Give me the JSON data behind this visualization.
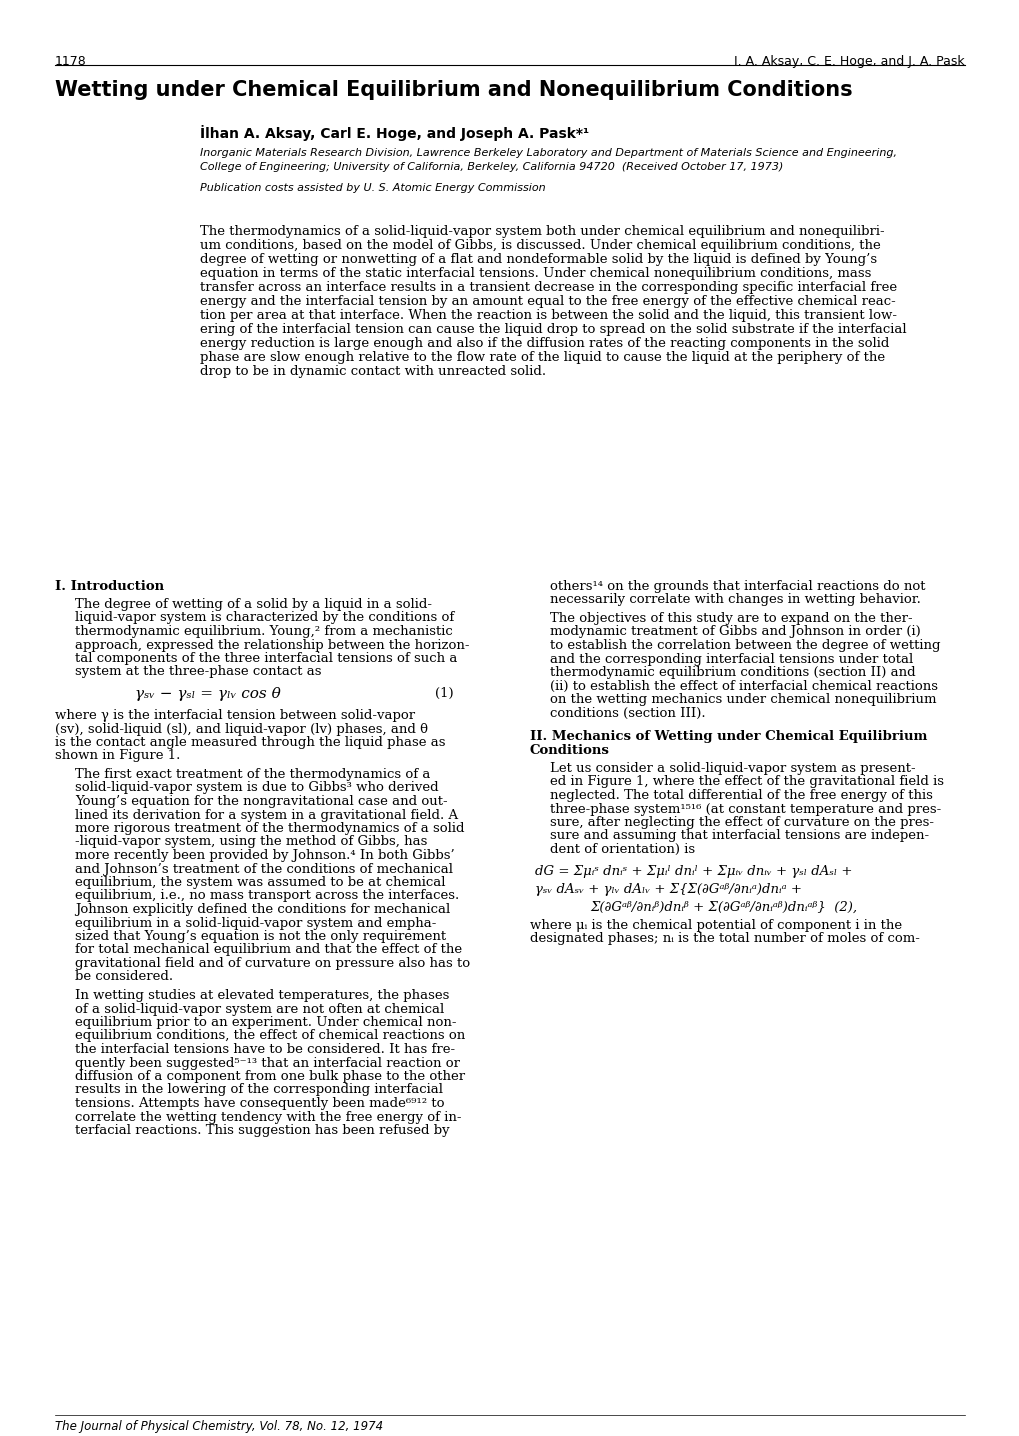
{
  "page_num": "1178",
  "header_right": "I. A. Aksay, C. E. Hoge, and J. A. Pask",
  "title": "Wetting under Chemical Equilibrium and Nonequilibrium Conditions",
  "authors": "İlhan A. Aksay, Carl E. Hoge, and Joseph A. Pask*¹",
  "affiliation1": "Inorganic Materials Research Division, Lawrence Berkeley Laboratory and Department of Materials Science and Engineering,",
  "affiliation2": "College of Engineering; University of California, Berkeley, California 94720  (Received October 17, 1973)",
  "publication": "Publication costs assisted by U. S. Atomic Energy Commission",
  "abstract": "The thermodynamics of a solid-liquid-vapor system both under chemical equilibrium and nonequilibri-\num conditions, based on the model of Gibbs, is discussed. Under chemical equilibrium conditions, the\ndegree of wetting or nonwetting of a flat and nondeformable solid by the liquid is defined by Young’s\nequation in terms of the static interfacial tensions. Under chemical nonequilibrium conditions, mass\ntransfer across an interface results in a transient decrease in the corresponding specific interfacial free\nenergy and the interfacial tension by an amount equal to the free energy of the effective chemical reac-\ntion per area at that interface. When the reaction is between the solid and the liquid, this transient low-\nering of the interfacial tension can cause the liquid drop to spread on the solid substrate if the interfacial\nenergy reduction is large enough and also if the diffusion rates of the reacting components in the solid\nphase are slow enough relative to the flow rate of the liquid to cause the liquid at the periphery of the\ndrop to be in dynamic contact with unreacted solid.",
  "section1_title": "I. Introduction",
  "section1_col1_para1": "The degree of wetting of a solid by a liquid in a solid-liquid-vapor system is characterized by the conditions of thermodynamic equilibrium. Young,² from a mechanistic approach, expressed the relationship between the horizontal components of the three interfacial tensions of such a system at the three-phase contact as",
  "equation1": "γₙᵥ − γₛₗ = γₗᵥ cos θ",
  "equation1_num": "(1)",
  "section1_col1_eq_note": "where γ is the interfacial tension between solid-vapor (sv), solid-liquid (sl), and liquid-vapor (lv) phases, and θ is the contact angle measured through the liquid phase as shown in Figure 1.",
  "section1_col1_para2": "The first exact treatment of the thermodynamics of a solid-liquid-vapor system is due to Gibbs³ who derived Young’s equation for the nongravitational case and outlined its derivation for a system in a gravitational field. A more rigorous treatment of the thermodynamics of a solid-liquid-vapor system, using the method of Gibbs, has more recently been provided by Johnson.⁴ In both Gibbs’ and Johnson’s treatment of the conditions of mechanical equilibrium, the system was assumed to be at chemical equilibrium, i.e., no mass transport across the interfaces. Johnson explicitly defined the conditions for mechanical equilibrium in a solid-liquid-vapor system and emphasized that Young’s equation is not the only requirement for total mechanical equilibrium and that the effect of the gravitational field and of curvature on pressure also has to be considered.",
  "section1_col1_para3": "In wetting studies at elevated temperatures, the phases of a solid-liquid-vapor system are not often at chemical equilibrium prior to an experiment. Under chemical nonequilibrium conditions, the effect of chemical reactions on the interfacial tensions have to be considered. It has frequently been suggested⁵⁻¹³ that an interfacial reaction or diffusion of a component from one bulk phase to the other results in the lowering of the corresponding interfacial tensions. Attempts have consequently been made⁶⁹¹² to correlate the wetting tendency with the free energy of interfacial reactions. This suggestion has been refused by",
  "section1_col2_para1": "others¹⁴ on the grounds that interfacial reactions do not necessarily correlate with changes in wetting behavior.",
  "section1_col2_para2": "The objectives of this study are to expand on the thermodynamic treatment of Gibbs and Johnson in order (i) to establish the correlation between the degree of wetting and the corresponding interfacial tensions under total thermodynamic equilibrium conditions (section II) and (ii) to establish the effect of interfacial chemical reactions on the wetting mechanics under chemical nonequilibrium conditions (section III).",
  "section2_title": "II. Mechanics of Wetting under Chemical Equilibrium Conditions",
  "section2_col2_para1": "Let us consider a solid-liquid-vapor system as presented in Figure 1, where the effect of the gravitational field is neglected. The total differential of the free energy of this three-phase system¹⁵¹⁶ (at constant temperature and pressure, after neglecting the effect of curvature on the pressure and assuming that interfacial tensions are independent of orientation) is",
  "footer": "The Journal of Physical Chemistry, Vol. 78, No. 12, 1974",
  "bg_color": "#ffffff",
  "text_color": "#000000"
}
